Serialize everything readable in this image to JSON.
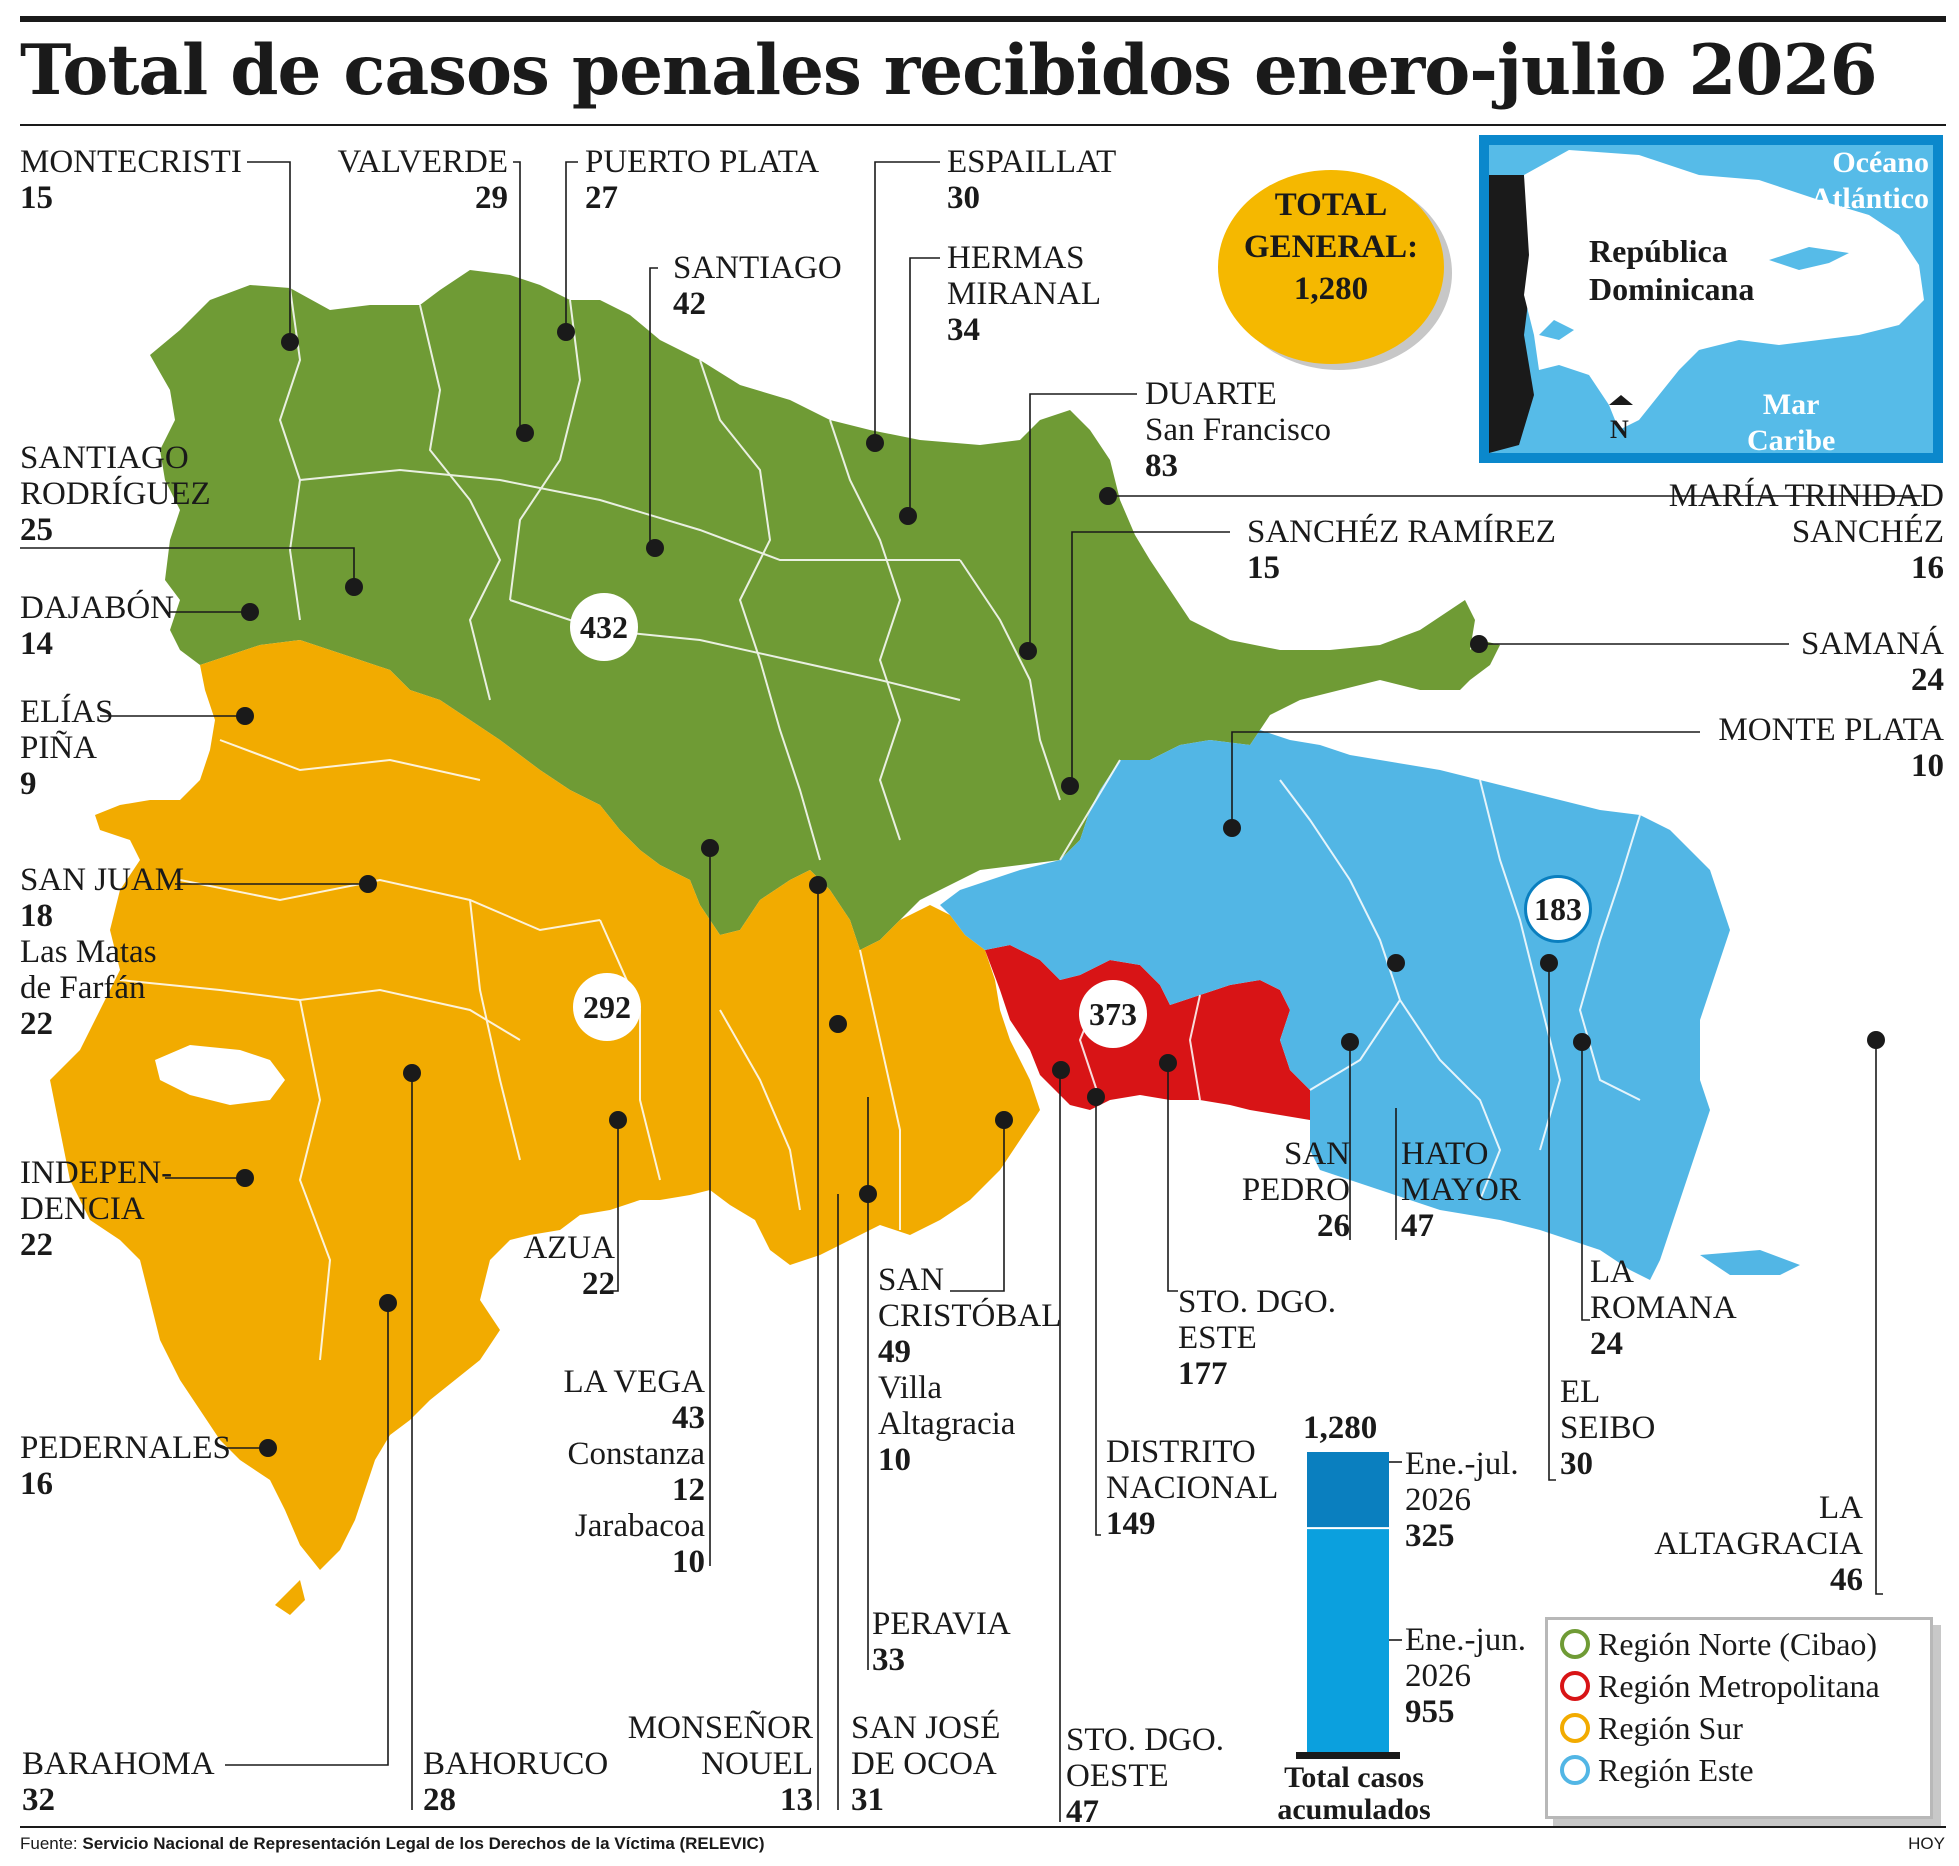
{
  "title": "Total de casos penales recibidos enero-julio 2026",
  "total_general": {
    "label_line1": "TOTAL",
    "label_line2": "GENERAL:",
    "value": "1,280"
  },
  "inset": {
    "country_line1": "República",
    "country_line2": "Dominicana",
    "ocean_line1": "Océano",
    "ocean_line2": "Atlántico",
    "sea_line1": "Mar",
    "sea_line2": "Caribe",
    "north": "N"
  },
  "regions": {
    "norte": {
      "name": "Región Norte (Cibao)",
      "total": "432",
      "color": "#6f9b35"
    },
    "metropolitana": {
      "name": "Región Metropolitana",
      "total": "373",
      "color": "#d81416"
    },
    "sur": {
      "name": "Región Sur",
      "total": "292",
      "color": "#f2ab00"
    },
    "este": {
      "name": "Región Este",
      "total": "183",
      "color": "#52b6e5"
    }
  },
  "provinces": {
    "montecristi": {
      "name": "MONTECRISTI",
      "value": "15"
    },
    "valverde": {
      "name": "VALVERDE",
      "value": "29"
    },
    "puerto_plata": {
      "name": "PUERTO PLATA",
      "value": "27"
    },
    "espaillat": {
      "name": "ESPAILLAT",
      "value": "30"
    },
    "santiago": {
      "name": "SANTIAGO",
      "value": "42"
    },
    "hermanas": {
      "name1": "HERMAS",
      "name2": "MIRANAL",
      "value": "34"
    },
    "duarte": {
      "name1": "DUARTE",
      "name2": "San Francisco",
      "value": "83"
    },
    "santiago_rodriguez": {
      "name1": "SANTIAGO",
      "name2": "RODRÍGUEZ",
      "value": "25"
    },
    "maria_trinidad": {
      "name1": "MARÍA TRINIDAD",
      "name2": "SANCHÉZ",
      "value": "16"
    },
    "sanchez_ramirez": {
      "name": "SANCHÉZ RAMÍREZ",
      "value": "15"
    },
    "dajabon": {
      "name": "DAJABÓN",
      "value": "14"
    },
    "samana": {
      "name": "SAMANÁ",
      "value": "24"
    },
    "elias_pina": {
      "name1": "ELÍAS",
      "name2": "PIÑA",
      "value": "9"
    },
    "monte_plata": {
      "name": "MONTE PLATA",
      "value": "10"
    },
    "san_juan": {
      "name": "SAN JUAM",
      "value": "18",
      "sub1": "Las Matas",
      "sub2": "de Farfán",
      "sub_value": "22"
    },
    "independencia": {
      "name1": "INDEPEN-",
      "name2": "DENCIA",
      "value": "22"
    },
    "azua": {
      "name": "AZUA",
      "value": "22"
    },
    "san_cristobal": {
      "name1": "SAN",
      "name2": "CRISTÓBAL",
      "value": "49",
      "sub1": "Villa",
      "sub2": "Altagracia",
      "sub_value": "10"
    },
    "sto_dgo_este": {
      "name1": "STO. DGO.",
      "name2": "ESTE",
      "value": "177"
    },
    "san_pedro": {
      "name1": "SAN",
      "name2": "PEDRO",
      "value": "26"
    },
    "hato_mayor": {
      "name1": "HATO",
      "name2": "MAYOR",
      "value": "47"
    },
    "la_romana": {
      "name1": "LA",
      "name2": "ROMANA",
      "value": "24"
    },
    "el_seibo": {
      "name1": "EL",
      "name2": "SEIBO",
      "value": "30"
    },
    "la_vega": {
      "name": "LA VEGA",
      "value": "43",
      "sub1": "Constanza",
      "sub1_value": "12",
      "sub2": "Jarabacoa",
      "sub2_value": "10"
    },
    "distrito_nacional": {
      "name1": "DISTRITO",
      "name2": "NACIONAL",
      "value": "149"
    },
    "la_altagracia": {
      "name1": "LA",
      "name2": "ALTAGRACIA",
      "value": "46"
    },
    "pedernales": {
      "name": "PEDERNALES",
      "value": "16"
    },
    "peravia": {
      "name": "PERAVIA",
      "value": "33"
    },
    "barahona": {
      "name": "BARAHOMA",
      "value": "32"
    },
    "bahoruco": {
      "name": "BAHORUCO",
      "value": "28"
    },
    "monsenor_nouel": {
      "name1": "MONSEÑOR",
      "name2": "NOUEL",
      "value": "13"
    },
    "san_jose_ocoa": {
      "name1": "SAN JOSÉ",
      "name2": "DE OCOA",
      "value": "31"
    },
    "sto_dgo_oeste": {
      "name1": "STO. DGO.",
      "name2": "OESTE",
      "value": "47"
    }
  },
  "accumulated": {
    "total": "1,280",
    "caption1": "Total casos",
    "caption2": "acumulados",
    "upper": {
      "label1": "Ene.-jul.",
      "label2": "2026",
      "value": 325
    },
    "lower": {
      "label1": "Ene.-jun.",
      "label2": "2026",
      "value": 955
    },
    "upper_color": "#0a7fbf",
    "lower_color": "#0ba0de"
  },
  "footer": {
    "label": "Fuente:",
    "source": "Servicio Nacional de Representación Legal de los Derechos de la Víctima (RELEVIC)",
    "credit": "HOY"
  }
}
